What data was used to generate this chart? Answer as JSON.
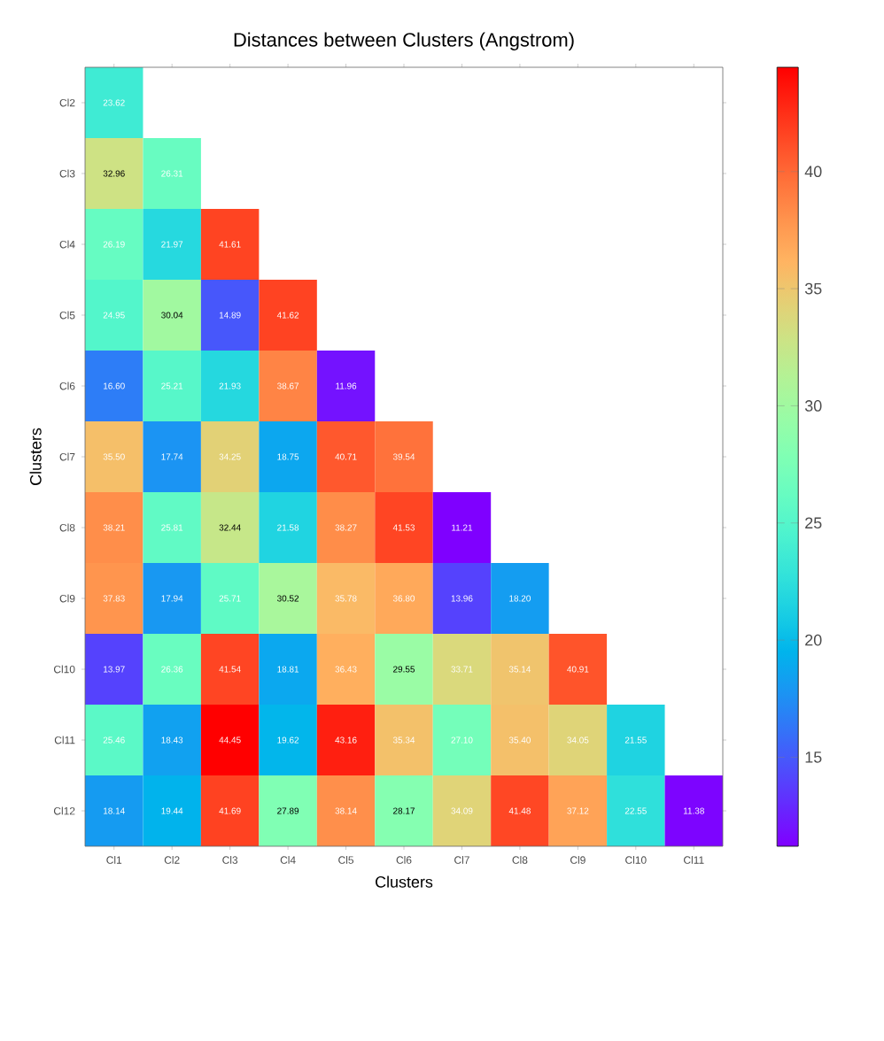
{
  "chart_data": {
    "type": "heatmap",
    "title": "Distances between Clusters (Angstrom)",
    "xlabel": "Clusters",
    "ylabel": "Clusters",
    "categories": [
      "Cl1",
      "Cl2",
      "Cl3",
      "Cl4",
      "Cl5",
      "Cl6",
      "Cl7",
      "Cl8",
      "Cl9",
      "Cl10",
      "Cl11"
    ],
    "y_categories": [
      "Cl2",
      "Cl3",
      "Cl4",
      "Cl5",
      "Cl6",
      "Cl7",
      "Cl8",
      "Cl9",
      "Cl10",
      "Cl11",
      "Cl12"
    ],
    "cells": [
      [
        23.62,
        null,
        null,
        null,
        null,
        null,
        null,
        null,
        null,
        null,
        null
      ],
      [
        32.96,
        26.31,
        null,
        null,
        null,
        null,
        null,
        null,
        null,
        null,
        null
      ],
      [
        26.19,
        21.97,
        41.61,
        null,
        null,
        null,
        null,
        null,
        null,
        null,
        null
      ],
      [
        24.95,
        30.04,
        14.89,
        41.62,
        null,
        null,
        null,
        null,
        null,
        null,
        null
      ],
      [
        16.6,
        25.21,
        21.93,
        38.67,
        11.96,
        null,
        null,
        null,
        null,
        null,
        null
      ],
      [
        35.5,
        17.74,
        34.25,
        18.75,
        40.71,
        39.54,
        null,
        null,
        null,
        null,
        null
      ],
      [
        38.21,
        25.81,
        32.44,
        21.58,
        38.27,
        41.53,
        11.21,
        null,
        null,
        null,
        null
      ],
      [
        37.83,
        17.94,
        25.71,
        30.52,
        35.78,
        36.8,
        13.96,
        18.2,
        null,
        null,
        null
      ],
      [
        13.97,
        26.36,
        41.54,
        18.81,
        36.43,
        29.55,
        33.71,
        35.14,
        40.91,
        null,
        null
      ],
      [
        25.46,
        18.43,
        44.45,
        19.62,
        43.16,
        35.34,
        27.1,
        35.4,
        34.05,
        21.55,
        null
      ],
      [
        18.14,
        19.44,
        41.69,
        27.89,
        38.14,
        28.17,
        34.09,
        41.48,
        37.12,
        22.55,
        11.38
      ]
    ],
    "cell_labels": [
      [
        "23.62",
        null,
        null,
        null,
        null,
        null,
        null,
        null,
        null,
        null,
        null
      ],
      [
        "32.96",
        "26.31",
        null,
        null,
        null,
        null,
        null,
        null,
        null,
        null,
        null
      ],
      [
        "26.19",
        "21.97",
        "41.61",
        null,
        null,
        null,
        null,
        null,
        null,
        null,
        null
      ],
      [
        "24.95",
        "30.04",
        "14.89",
        "41.62",
        null,
        null,
        null,
        null,
        null,
        null,
        null
      ],
      [
        "16.60",
        "25.21",
        "21.93",
        "38.67",
        "11.96",
        null,
        null,
        null,
        null,
        null,
        null
      ],
      [
        "35.50",
        "17.74",
        "34.25",
        "18.75",
        "40.71",
        "39.54",
        null,
        null,
        null,
        null,
        null
      ],
      [
        "38.21",
        "25.81",
        "32.44",
        "21.58",
        "38.27",
        "41.53",
        "11.21",
        null,
        null,
        null,
        null
      ],
      [
        "37.83",
        "17.94",
        "25.71",
        "30.52",
        "35.78",
        "36.80",
        "13.96",
        "18.20",
        null,
        null,
        null
      ],
      [
        "13.97",
        "26.36",
        "41.54",
        "18.81",
        "36.43",
        "29.55",
        "33.71",
        "35.14",
        "40.91",
        null,
        null
      ],
      [
        "25.46",
        "18.43",
        "44.45",
        "19.62",
        "43.16",
        "35.34",
        "27.10",
        "35.40",
        "34.05",
        "21.55",
        null
      ],
      [
        "18.14",
        "19.44",
        "41.69",
        "27.89",
        "38.14",
        "28.17",
        "34.09",
        "41.48",
        "37.12",
        "22.55",
        "11.38"
      ]
    ],
    "clim": [
      11.2,
      44.45
    ],
    "cticks": [
      15,
      20,
      25,
      30,
      35,
      40
    ]
  }
}
